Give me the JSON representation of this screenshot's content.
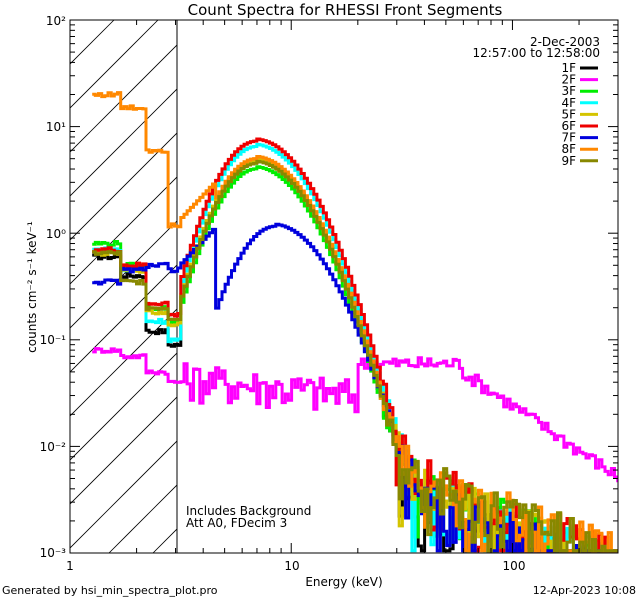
{
  "chart_data": {
    "type": "line",
    "title": "Count Spectra for RHESSI Front Segments",
    "xlabel": "Energy (keV)",
    "ylabel": "counts cm⁻² s⁻¹ keV⁻¹",
    "xscale": "log",
    "yscale": "log",
    "xlim": [
      1,
      300
    ],
    "ylim": [
      0.001,
      100
    ],
    "x_ticks": [
      {
        "value": 1,
        "label": "1"
      },
      {
        "value": 10,
        "label": "10"
      },
      {
        "value": 100,
        "label": "100"
      }
    ],
    "y_ticks": [
      {
        "value": 0.001,
        "label": "10⁻³"
      },
      {
        "value": 0.01,
        "label": "10⁻²"
      },
      {
        "value": 0.1,
        "label": "10⁻¹"
      },
      {
        "value": 1,
        "label": "10⁰"
      },
      {
        "value": 10,
        "label": "10¹"
      },
      {
        "value": 100,
        "label": "10²"
      }
    ],
    "excluded_region": {
      "xmin": 1,
      "xmax": 3,
      "pattern": "diagonal hatch"
    },
    "date": "2-Dec-2003",
    "time_range": "12:57:00 to 12:58:00",
    "notes": [
      "Includes Background",
      "Att A0, FDecim 3"
    ],
    "footer_left": "Generated by hsi_min_spectra_plot.pro",
    "footer_right": "12-Apr-2023 10:08",
    "series": [
      {
        "name": "1F",
        "color": "#000000",
        "peak": 4.6,
        "peak_e": 7.0,
        "low": [
          0.6,
          0.4,
          0.12,
          0.09
        ],
        "high_base": 0.004
      },
      {
        "name": "2F",
        "color": "#ff00ff",
        "peak": 0.05,
        "peak_e": 9.0,
        "low": [
          0.08,
          0.07,
          0.05,
          0.04
        ],
        "high_base": 0.008
      },
      {
        "name": "3F",
        "color": "#00ee00",
        "peak": 4.0,
        "peak_e": 7.0,
        "low": [
          0.8,
          0.5,
          0.2,
          0.15
        ],
        "high_base": 0.005
      },
      {
        "name": "4F",
        "color": "#00ffff",
        "peak": 6.5,
        "peak_e": 7.0,
        "low": [
          0.7,
          0.45,
          0.15,
          0.1
        ],
        "high_base": 0.005
      },
      {
        "name": "5F",
        "color": "#d4c400",
        "peak": 4.8,
        "peak_e": 7.0,
        "low": [
          0.65,
          0.45,
          0.18,
          0.14
        ],
        "high_base": 0.005
      },
      {
        "name": "6F",
        "color": "#ee0000",
        "peak": 7.3,
        "peak_e": 7.0,
        "low": [
          0.7,
          0.5,
          0.22,
          0.17
        ],
        "high_base": 0.006
      },
      {
        "name": "7F",
        "color": "#0000dd",
        "peak": 1.15,
        "peak_e": 8.5,
        "low": [
          0.35,
          0.45,
          0.5,
          0.45
        ],
        "high_base": 0.004
      },
      {
        "name": "8F",
        "color": "#ff8800",
        "peak": 5.0,
        "peak_e": 7.0,
        "low": [
          20,
          15,
          6,
          1.2
        ],
        "high_base": 0.006
      },
      {
        "name": "9F",
        "color": "#888800",
        "peak": 4.5,
        "peak_e": 7.0,
        "low": [
          0.65,
          0.35,
          0.2,
          0.16
        ],
        "high_base": 0.006
      }
    ]
  }
}
